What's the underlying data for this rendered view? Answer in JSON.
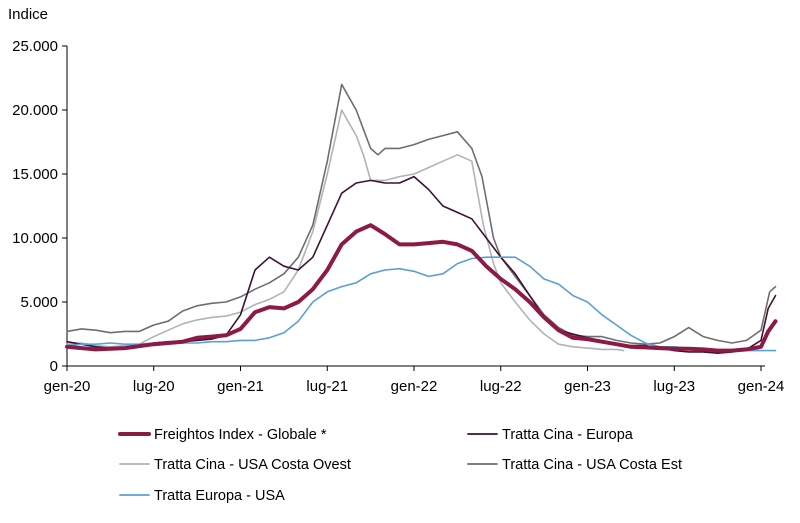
{
  "chart_data": {
    "type": "line",
    "title": "",
    "ylabel": "Indice",
    "xlabel": "",
    "ylim": [
      0,
      25000
    ],
    "yticks": [
      0,
      5000,
      10000,
      15000,
      20000,
      25000
    ],
    "ytick_labels": [
      "0",
      "5.000",
      "10.000",
      "15.000",
      "20.000",
      "25.000"
    ],
    "xlim": [
      0,
      49
    ],
    "xticks": [
      0,
      6,
      12,
      18,
      24,
      30,
      36,
      42,
      48
    ],
    "xtick_labels": [
      "gen-20",
      "lug-20",
      "gen-21",
      "lug-21",
      "gen-22",
      "lug-22",
      "gen-23",
      "lug-23",
      "gen-24"
    ],
    "x_unit": "months since Jan 2020",
    "series": [
      {
        "name": "Tratta Cina - USA Costa Est",
        "color": "#6e6e6e",
        "width": 1.6,
        "points": [
          [
            0,
            2700
          ],
          [
            1,
            2900
          ],
          [
            2,
            2800
          ],
          [
            3,
            2600
          ],
          [
            4,
            2700
          ],
          [
            5,
            2700
          ],
          [
            6,
            3200
          ],
          [
            7,
            3500
          ],
          [
            8,
            4300
          ],
          [
            9,
            4700
          ],
          [
            10,
            4900
          ],
          [
            11,
            5000
          ],
          [
            12,
            5400
          ],
          [
            13,
            6000
          ],
          [
            14,
            6500
          ],
          [
            15,
            7200
          ],
          [
            16,
            8500
          ],
          [
            17,
            11000
          ],
          [
            18,
            16000
          ],
          [
            18.5,
            19000
          ],
          [
            19,
            22000
          ],
          [
            19.5,
            21000
          ],
          [
            20,
            20000
          ],
          [
            20.5,
            18500
          ],
          [
            21,
            17000
          ],
          [
            21.5,
            16500
          ],
          [
            22,
            17000
          ],
          [
            23,
            17000
          ],
          [
            24,
            17300
          ],
          [
            25,
            17700
          ],
          [
            26,
            18000
          ],
          [
            27,
            18300
          ],
          [
            28,
            17000
          ],
          [
            28.7,
            14800
          ],
          [
            29,
            13000
          ],
          [
            29.5,
            10000
          ],
          [
            30,
            8500
          ],
          [
            31,
            7000
          ],
          [
            32,
            5500
          ],
          [
            33,
            4000
          ],
          [
            34,
            3000
          ],
          [
            35,
            2400
          ],
          [
            36,
            2300
          ],
          [
            37,
            2300
          ],
          [
            38,
            2000
          ],
          [
            39,
            1800
          ],
          [
            40,
            1700
          ],
          [
            41,
            1800
          ],
          [
            42,
            2300
          ],
          [
            43,
            3000
          ],
          [
            44,
            2300
          ],
          [
            45,
            2000
          ],
          [
            46,
            1800
          ],
          [
            47,
            2000
          ],
          [
            48,
            2800
          ],
          [
            48.6,
            5800
          ],
          [
            49,
            6200
          ]
        ]
      },
      {
        "name": "Tratta Cina - USA Costa Ovest",
        "color": "#b3b3b3",
        "width": 1.6,
        "points": [
          [
            0,
            1700
          ],
          [
            1,
            1800
          ],
          [
            2,
            1600
          ],
          [
            3,
            1500
          ],
          [
            4,
            1600
          ],
          [
            5,
            1700
          ],
          [
            6,
            2300
          ],
          [
            7,
            2800
          ],
          [
            8,
            3300
          ],
          [
            9,
            3600
          ],
          [
            10,
            3800
          ],
          [
            11,
            3900
          ],
          [
            12,
            4200
          ],
          [
            13,
            4800
          ],
          [
            14,
            5200
          ],
          [
            15,
            5800
          ],
          [
            16,
            7500
          ],
          [
            17,
            10500
          ],
          [
            18,
            15000
          ],
          [
            18.5,
            17500
          ],
          [
            19,
            20000
          ],
          [
            19.5,
            19000
          ],
          [
            20,
            18000
          ],
          [
            20.5,
            16500
          ],
          [
            21,
            14500
          ],
          [
            22,
            14500
          ],
          [
            23,
            14800
          ],
          [
            24,
            15000
          ],
          [
            25,
            15500
          ],
          [
            26,
            16000
          ],
          [
            27,
            16500
          ],
          [
            28,
            16000
          ],
          [
            28.8,
            11000
          ],
          [
            29.5,
            8000
          ],
          [
            30,
            6500
          ],
          [
            31,
            5000
          ],
          [
            32,
            3600
          ],
          [
            33,
            2500
          ],
          [
            34,
            1700
          ],
          [
            35,
            1500
          ],
          [
            36,
            1400
          ],
          [
            37,
            1300
          ],
          [
            38,
            1300
          ],
          [
            38.5,
            1200
          ]
        ]
      },
      {
        "name": "Tratta Cina - Europa",
        "color": "#3d1233",
        "width": 1.6,
        "points": [
          [
            0,
            1900
          ],
          [
            1,
            1700
          ],
          [
            2,
            1500
          ],
          [
            3,
            1400
          ],
          [
            4,
            1400
          ],
          [
            5,
            1600
          ],
          [
            6,
            1800
          ],
          [
            7,
            1900
          ],
          [
            8,
            1900
          ],
          [
            9,
            2000
          ],
          [
            10,
            2100
          ],
          [
            11,
            2400
          ],
          [
            12,
            4000
          ],
          [
            13,
            7500
          ],
          [
            14,
            8500
          ],
          [
            15,
            7800
          ],
          [
            16,
            7500
          ],
          [
            17,
            8500
          ],
          [
            18,
            11000
          ],
          [
            19,
            13500
          ],
          [
            20,
            14300
          ],
          [
            21,
            14500
          ],
          [
            22,
            14300
          ],
          [
            23,
            14300
          ],
          [
            24,
            14800
          ],
          [
            25,
            13800
          ],
          [
            26,
            12500
          ],
          [
            27,
            12000
          ],
          [
            28,
            11500
          ],
          [
            29,
            10000
          ],
          [
            30,
            8500
          ],
          [
            31,
            7200
          ],
          [
            32,
            5500
          ],
          [
            33,
            3800
          ],
          [
            34,
            2800
          ],
          [
            35,
            2500
          ],
          [
            36,
            2200
          ],
          [
            37,
            1900
          ],
          [
            38,
            1700
          ],
          [
            39,
            1600
          ],
          [
            40,
            1600
          ],
          [
            41,
            1400
          ],
          [
            42,
            1200
          ],
          [
            43,
            1100
          ],
          [
            44,
            1100
          ],
          [
            45,
            1000
          ],
          [
            46,
            1100
          ],
          [
            47,
            1300
          ],
          [
            48,
            2000
          ],
          [
            48.5,
            4500
          ],
          [
            49,
            5500
          ]
        ]
      },
      {
        "name": "Tratta Europa - USA",
        "color": "#5aa0d8",
        "width": 1.6,
        "points": [
          [
            0,
            1600
          ],
          [
            1,
            1700
          ],
          [
            2,
            1700
          ],
          [
            3,
            1800
          ],
          [
            4,
            1700
          ],
          [
            5,
            1700
          ],
          [
            6,
            1800
          ],
          [
            7,
            1800
          ],
          [
            8,
            1800
          ],
          [
            9,
            1800
          ],
          [
            10,
            1900
          ],
          [
            11,
            1900
          ],
          [
            12,
            2000
          ],
          [
            13,
            2000
          ],
          [
            14,
            2200
          ],
          [
            15,
            2600
          ],
          [
            16,
            3500
          ],
          [
            17,
            5000
          ],
          [
            18,
            5800
          ],
          [
            19,
            6200
          ],
          [
            20,
            6500
          ],
          [
            21,
            7200
          ],
          [
            22,
            7500
          ],
          [
            23,
            7600
          ],
          [
            24,
            7400
          ],
          [
            25,
            7000
          ],
          [
            26,
            7200
          ],
          [
            27,
            8000
          ],
          [
            28,
            8400
          ],
          [
            29,
            8500
          ],
          [
            30,
            8500
          ],
          [
            31,
            8500
          ],
          [
            32,
            7800
          ],
          [
            33,
            6800
          ],
          [
            34,
            6400
          ],
          [
            35,
            5500
          ],
          [
            36,
            5000
          ],
          [
            37,
            4000
          ],
          [
            38,
            3200
          ],
          [
            39,
            2400
          ],
          [
            40,
            1800
          ],
          [
            41,
            1500
          ],
          [
            42,
            1500
          ],
          [
            43,
            1400
          ],
          [
            44,
            1300
          ],
          [
            45,
            1200
          ],
          [
            46,
            1200
          ],
          [
            47,
            1200
          ],
          [
            48,
            1200
          ],
          [
            49,
            1200
          ]
        ]
      },
      {
        "name": "Freightos Index - Globale *",
        "color": "#8b1a44",
        "width": 4,
        "points": [
          [
            0,
            1500
          ],
          [
            1,
            1400
          ],
          [
            2,
            1300
          ],
          [
            3,
            1350
          ],
          [
            4,
            1400
          ],
          [
            5,
            1550
          ],
          [
            6,
            1700
          ],
          [
            7,
            1800
          ],
          [
            8,
            1900
          ],
          [
            9,
            2200
          ],
          [
            10,
            2300
          ],
          [
            11,
            2400
          ],
          [
            12,
            2900
          ],
          [
            13,
            4200
          ],
          [
            14,
            4600
          ],
          [
            15,
            4500
          ],
          [
            16,
            5000
          ],
          [
            17,
            6000
          ],
          [
            18,
            7500
          ],
          [
            19,
            9500
          ],
          [
            20,
            10500
          ],
          [
            21,
            11000
          ],
          [
            22,
            10300
          ],
          [
            23,
            9500
          ],
          [
            24,
            9500
          ],
          [
            25,
            9600
          ],
          [
            26,
            9700
          ],
          [
            27,
            9500
          ],
          [
            28,
            9000
          ],
          [
            29,
            7800
          ],
          [
            30,
            6800
          ],
          [
            31,
            6000
          ],
          [
            32,
            5000
          ],
          [
            33,
            3800
          ],
          [
            34,
            2800
          ],
          [
            35,
            2200
          ],
          [
            36,
            2100
          ],
          [
            37,
            1900
          ],
          [
            38,
            1700
          ],
          [
            39,
            1500
          ],
          [
            40,
            1450
          ],
          [
            41,
            1400
          ],
          [
            42,
            1350
          ],
          [
            43,
            1350
          ],
          [
            44,
            1300
          ],
          [
            45,
            1200
          ],
          [
            46,
            1200
          ],
          [
            47,
            1300
          ],
          [
            48,
            1500
          ],
          [
            48.5,
            2700
          ],
          [
            49,
            3500
          ]
        ]
      }
    ],
    "legend": [
      {
        "label": "Freightos Index - Globale *",
        "color": "#8b1a44",
        "thick": true
      },
      {
        "label": "Tratta Cina - Europa",
        "color": "#3d1233",
        "thick": false
      },
      {
        "label": "Tratta Cina - USA Costa Ovest",
        "color": "#b3b3b3",
        "thick": false
      },
      {
        "label": "Tratta Cina - USA Costa Est",
        "color": "#6e6e6e",
        "thick": false
      },
      {
        "label": "Tratta Europa - USA",
        "color": "#5aa0d8",
        "thick": false
      }
    ],
    "legend_position": "bottom",
    "grid": false
  }
}
